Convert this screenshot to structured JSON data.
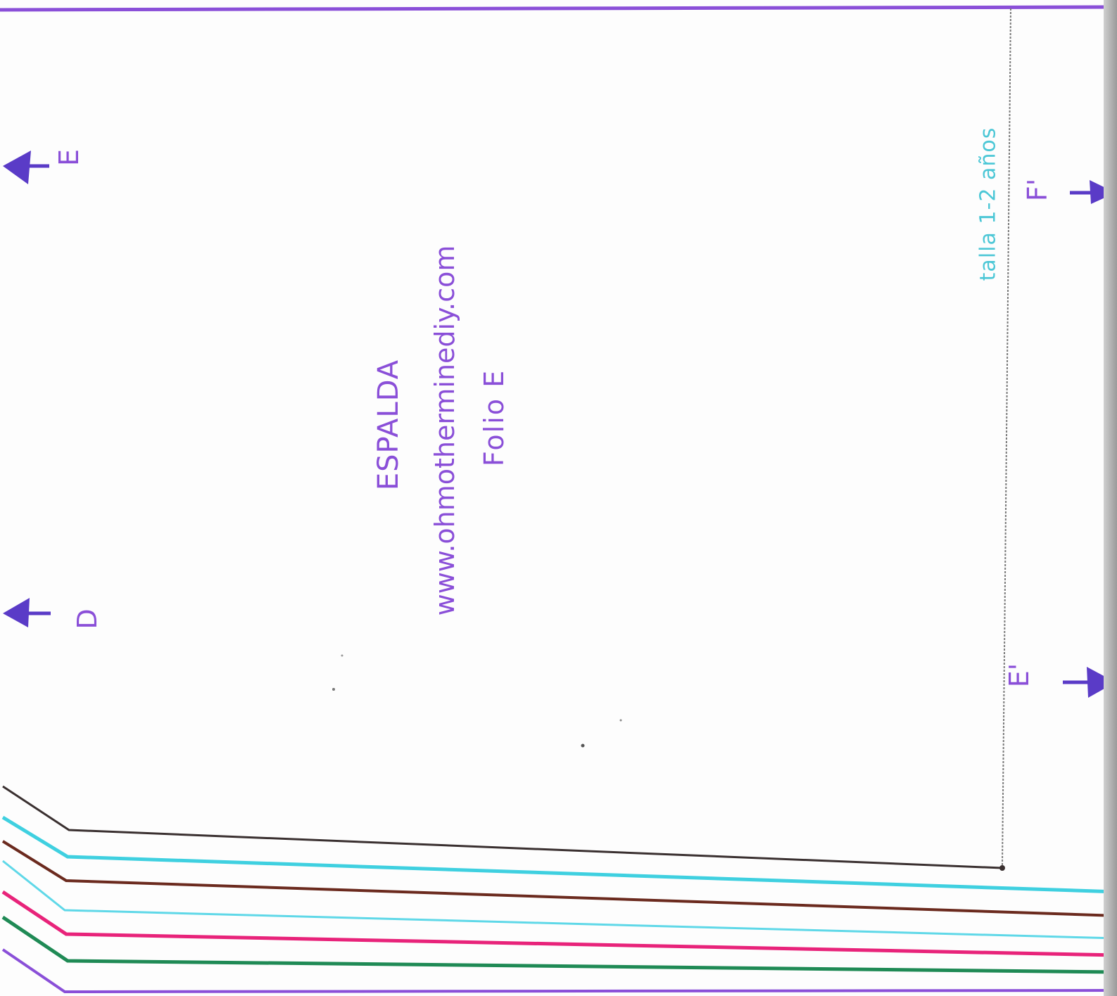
{
  "pattern": {
    "piece_name": "ESPALDA",
    "website": "www.ohmotherminediy.com",
    "sheet_label": "Folio E",
    "size_note": "talla 1-2 años"
  },
  "markers": {
    "left_top": "E",
    "left_bottom": "D",
    "right_top": "F'",
    "right_bottom": "E'"
  },
  "colors": {
    "ink_purple": "#8a4fd8",
    "marker_blue": "#5a3bc7",
    "size_cyan": "#4cc7d6",
    "line_black": "#3a3030",
    "line_cyan": "#3fd0e0",
    "line_brown": "#6b2a1e",
    "line_light_cyan": "#5fd8e8",
    "line_magenta": "#e8237a",
    "line_green": "#1f8a55",
    "line_purple": "#8a4fd8"
  }
}
